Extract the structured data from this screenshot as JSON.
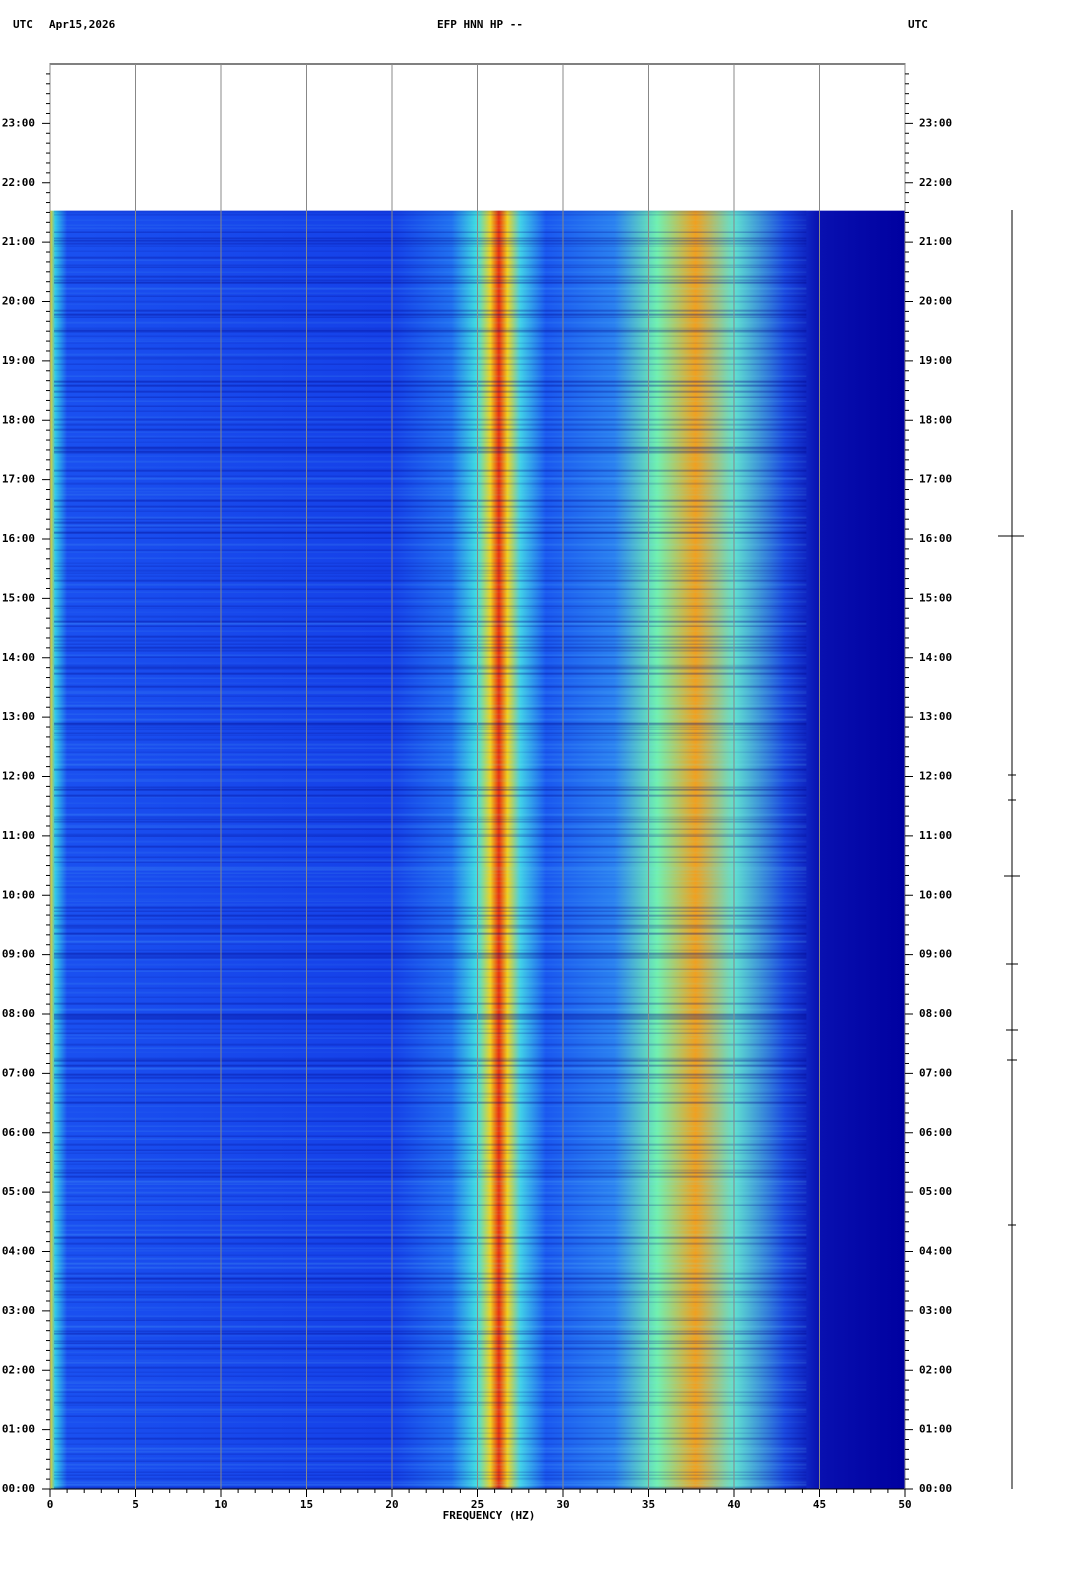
{
  "chart_data": {
    "type": "spectrogram",
    "title": "EFP HNN HP --",
    "date": "Apr15,2026",
    "left_axis_label": "UTC",
    "right_axis_label": "UTC",
    "xlabel": "FREQUENCY (HZ)",
    "xlim": [
      0,
      50
    ],
    "xticks": [
      0,
      5,
      10,
      15,
      20,
      25,
      30,
      35,
      40,
      45,
      50
    ],
    "ylim": [
      0,
      24
    ],
    "yticks": [
      {
        "value": 0,
        "label": "00:00"
      },
      {
        "value": 1,
        "label": "01:00"
      },
      {
        "value": 2,
        "label": "02:00"
      },
      {
        "value": 3,
        "label": "03:00"
      },
      {
        "value": 4,
        "label": "04:00"
      },
      {
        "value": 5,
        "label": "05:00"
      },
      {
        "value": 6,
        "label": "06:00"
      },
      {
        "value": 7,
        "label": "07:00"
      },
      {
        "value": 8,
        "label": "08:00"
      },
      {
        "value": 9,
        "label": "09:00"
      },
      {
        "value": 10,
        "label": "10:00"
      },
      {
        "value": 11,
        "label": "11:00"
      },
      {
        "value": 12,
        "label": "12:00"
      },
      {
        "value": 13,
        "label": "13:00"
      },
      {
        "value": 14,
        "label": "14:00"
      },
      {
        "value": 15,
        "label": "15:00"
      },
      {
        "value": 16,
        "label": "16:00"
      },
      {
        "value": 17,
        "label": "17:00"
      },
      {
        "value": 18,
        "label": "18:00"
      },
      {
        "value": 19,
        "label": "19:00"
      },
      {
        "value": 20,
        "label": "20:00"
      },
      {
        "value": 21,
        "label": "21:00"
      },
      {
        "value": 22,
        "label": "22:00"
      },
      {
        "value": 23,
        "label": "23:00"
      }
    ],
    "time_range": [
      0,
      21.53
    ],
    "grid": true
  }
}
